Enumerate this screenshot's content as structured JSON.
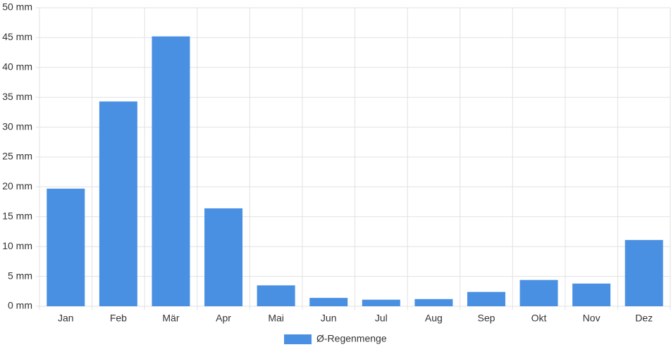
{
  "chart_data": {
    "type": "bar",
    "categories": [
      "Jan",
      "Feb",
      "Mär",
      "Apr",
      "Mai",
      "Jun",
      "Jul",
      "Aug",
      "Sep",
      "Okt",
      "Nov",
      "Dez"
    ],
    "series": [
      {
        "name": "Ø-Regenmenge",
        "color": "#4a90e2",
        "values": [
          19.7,
          34.3,
          45.2,
          16.4,
          3.5,
          1.4,
          1.1,
          1.2,
          2.4,
          4.4,
          3.8,
          11.1
        ]
      }
    ],
    "ylim": [
      0,
      50
    ],
    "yticks": [
      {
        "value": 0,
        "label": "0 mm"
      },
      {
        "value": 5,
        "label": "5 mm"
      },
      {
        "value": 10,
        "label": "10 mm"
      },
      {
        "value": 15,
        "label": "15 mm"
      },
      {
        "value": 20,
        "label": "20 mm"
      },
      {
        "value": 25,
        "label": "25 mm"
      },
      {
        "value": 30,
        "label": "30 mm"
      },
      {
        "value": 35,
        "label": "35 mm"
      },
      {
        "value": 40,
        "label": "40 mm"
      },
      {
        "value": 45,
        "label": "45 mm"
      },
      {
        "value": 50,
        "label": "50 mm"
      }
    ],
    "grid": true,
    "legend": "bottom"
  }
}
